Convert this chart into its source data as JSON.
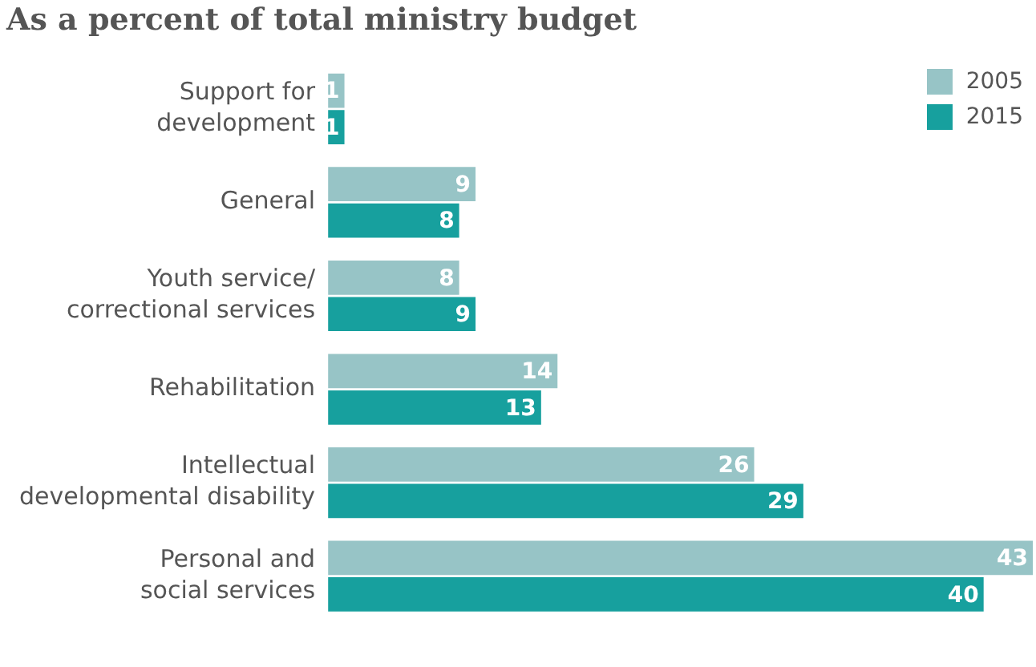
{
  "chart_data": {
    "type": "bar",
    "orientation": "horizontal",
    "title": "As a percent of total ministry budget",
    "categories": [
      "Support for\ndevelopment",
      "General",
      "Youth service/\ncorrectional services",
      "Rehabilitation",
      "Intellectual\ndevelopmental disability",
      "Personal and\nsocial services"
    ],
    "series": [
      {
        "name": "2005",
        "color": "#97c4c6",
        "values": [
          1,
          9,
          8,
          14,
          26,
          43
        ]
      },
      {
        "name": "2015",
        "color": "#17a09e",
        "values": [
          1,
          8,
          9,
          13,
          29,
          40
        ]
      }
    ],
    "data_labels": true,
    "legend": "top right",
    "grid": false
  }
}
